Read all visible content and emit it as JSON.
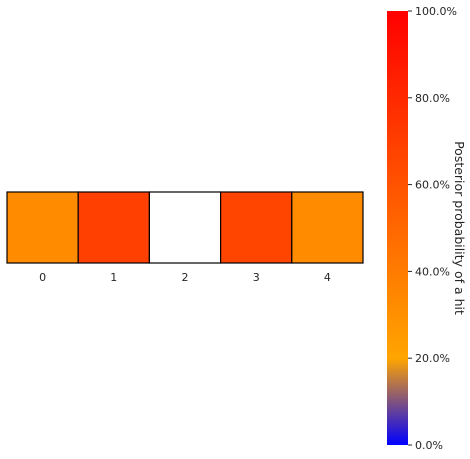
{
  "chart_data": {
    "type": "heatmap",
    "title": "",
    "xlabel": "",
    "ylabel": "",
    "categories": [
      "0",
      "1",
      "2",
      "3",
      "4"
    ],
    "values": [
      0.375,
      0.79,
      0.0,
      0.77,
      0.375
    ],
    "cell_colors": [
      "#FF8C00",
      "#FF4000",
      "#FFFFFF",
      "#FF4500",
      "#FF8C00"
    ],
    "colorbar": {
      "label": "Posterior probability of a hit",
      "range": [
        0,
        1
      ],
      "ticks": [
        0.0,
        0.2,
        0.4,
        0.6,
        0.8,
        1.0
      ],
      "tick_labels": [
        "0.0%",
        "20.0%",
        "40.0%",
        "60.0%",
        "80.0%",
        "100.0%"
      ],
      "colors": [
        "#0000FF",
        "#FFA500",
        "#FF0000"
      ],
      "color_stops": [
        0.0,
        0.2,
        1.0
      ]
    },
    "grid": false,
    "cell_border_color": "#000000"
  }
}
